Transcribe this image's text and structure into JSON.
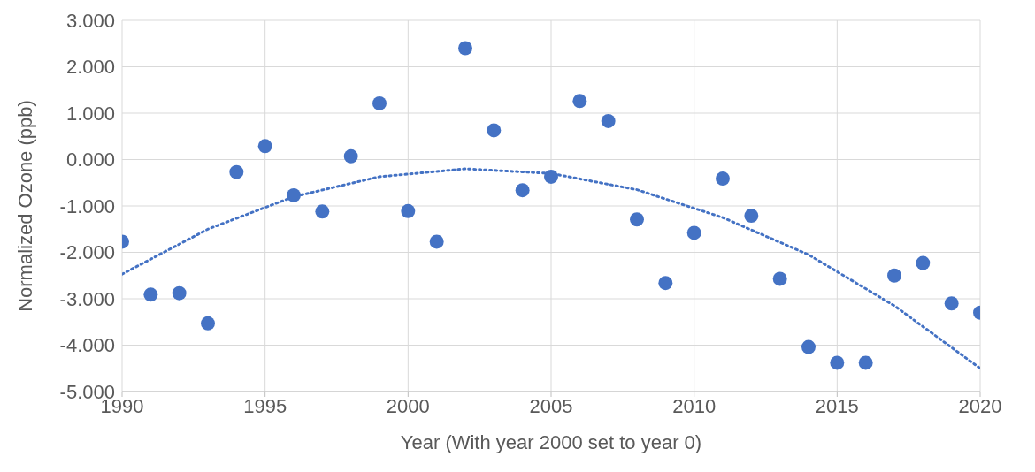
{
  "chart_data": {
    "type": "scatter",
    "xlabel": "Year (With year 2000 set to year 0)",
    "ylabel": "Normalized Ozone (ppb)",
    "xlim": [
      1990,
      2020
    ],
    "xticks": [
      1990,
      1995,
      2000,
      2005,
      2010,
      2015,
      2020
    ],
    "ylim": [
      -5,
      3
    ],
    "yticks": [
      {
        "value": -5,
        "label": "-5.000"
      },
      {
        "value": -4,
        "label": "-4.000"
      },
      {
        "value": -3,
        "label": "-3.000"
      },
      {
        "value": -2,
        "label": "-2.000"
      },
      {
        "value": -1,
        "label": "-1.000"
      },
      {
        "value": 0,
        "label": "0.000"
      },
      {
        "value": 1,
        "label": "1.000"
      },
      {
        "value": 2,
        "label": "2.000"
      },
      {
        "value": 3,
        "label": "3.000"
      }
    ],
    "grid": true,
    "marker": "circle",
    "series": [
      {
        "color": "#4472c4",
        "x": [
          1990,
          1991,
          1992,
          1993,
          1994,
          1995,
          1996,
          1997,
          1998,
          1999,
          2000,
          2001,
          2002,
          2003,
          2004,
          2005,
          2006,
          2007,
          2008,
          2009,
          2010,
          2011,
          2012,
          2013,
          2014,
          2015,
          2016,
          2017,
          2018,
          2019,
          2020
        ],
        "values": [
          -1.77,
          -2.91,
          -2.88,
          -3.53,
          -0.27,
          0.29,
          -0.77,
          -1.12,
          0.07,
          1.21,
          -1.11,
          -1.77,
          2.4,
          0.63,
          -0.66,
          -0.37,
          1.26,
          0.83,
          -1.29,
          -2.66,
          -1.58,
          -0.41,
          -1.21,
          -2.57,
          -4.04,
          -4.38,
          -4.38,
          -2.5,
          -2.23,
          -3.1,
          -3.3
        ]
      },
      {
        "type": "line",
        "color": "#4472c4",
        "line_style": "dotted",
        "marker": "none",
        "x": [
          1990,
          1993,
          1996,
          1999,
          2002,
          2005,
          2008,
          2011,
          2014,
          2017,
          2020
        ],
        "values": [
          -2.47,
          -1.5,
          -0.8,
          -0.37,
          -0.2,
          -0.3,
          -0.65,
          -1.25,
          -2.05,
          -3.15,
          -4.5
        ]
      }
    ]
  }
}
